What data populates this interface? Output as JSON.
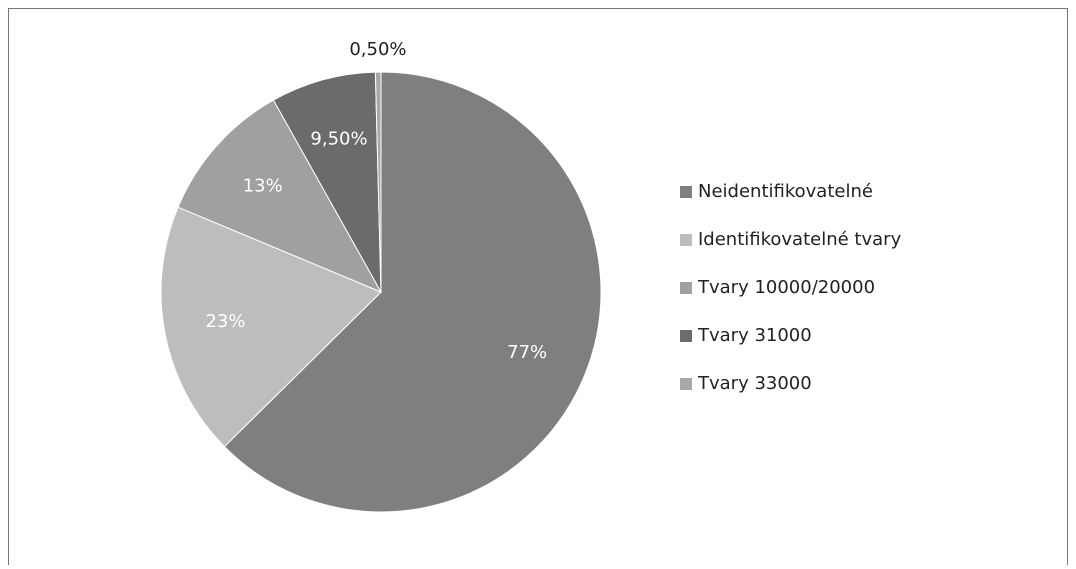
{
  "chart_data": {
    "type": "pie",
    "categories": [
      "Neidentifikovatelné",
      "Identifikovatelné tvary",
      "Tvary 10000/20000",
      "Tvary 31000",
      "Tvary 33000"
    ],
    "values": [
      77,
      23,
      13,
      9.5,
      0.5
    ],
    "value_labels": [
      "77%",
      "23%",
      "13%",
      "9,50%",
      "0,50%"
    ],
    "colors": [
      "#7f7f82",
      "#bdbdbf",
      "#a0a0a2",
      "#6b6b6e",
      "#a8a8a8"
    ],
    "legend": "right"
  }
}
